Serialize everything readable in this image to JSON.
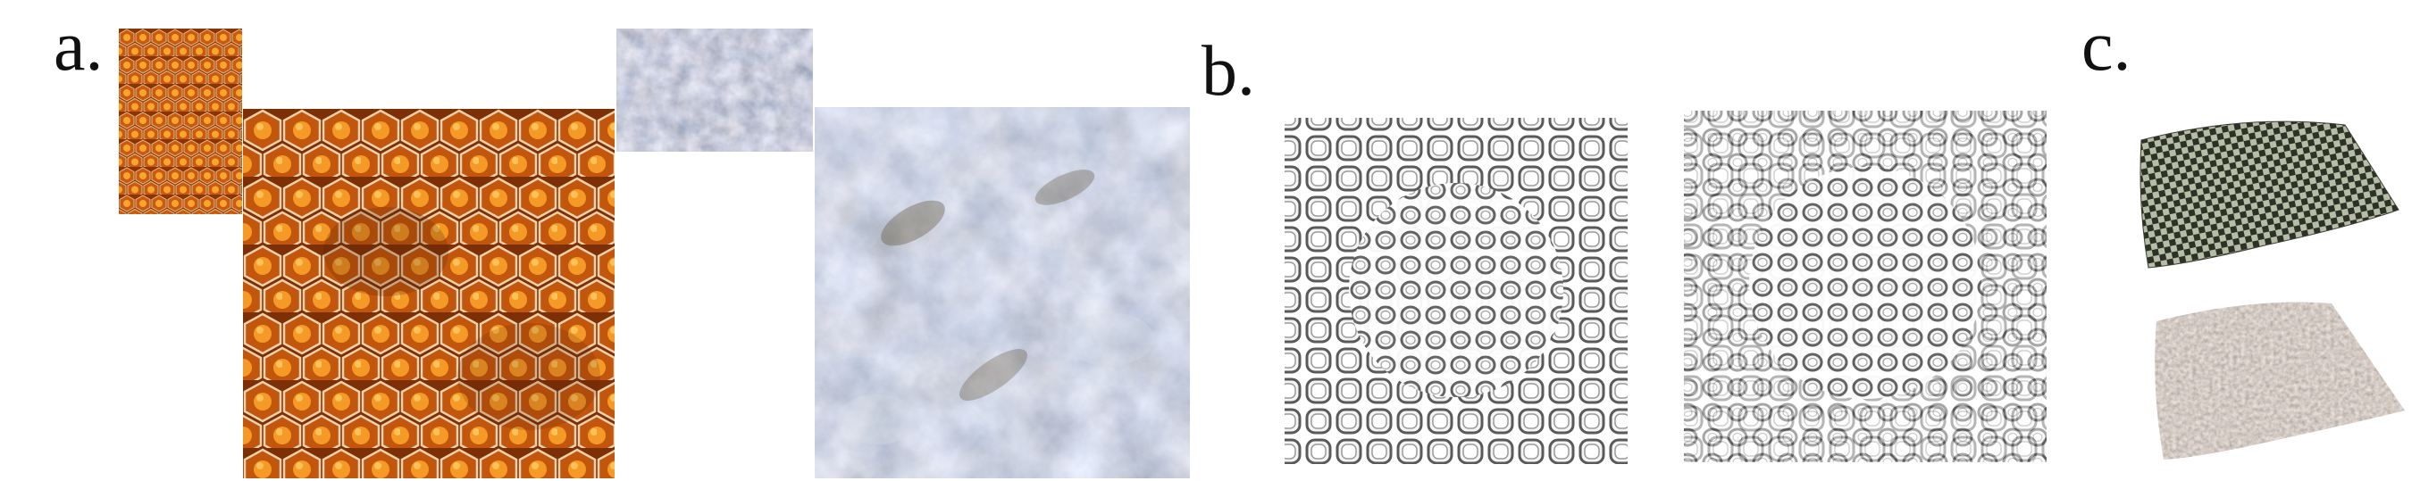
{
  "figure": {
    "panels": [
      {
        "label": "a.",
        "contents": [
          "honeycomb-exemplar",
          "honeycomb-synthesis",
          "rock-exemplar",
          "rock-synthesis"
        ]
      },
      {
        "label": "b.",
        "contents": [
          "3d-lattice-exemplar",
          "3d-lattice-synthesis"
        ]
      },
      {
        "label": "c.",
        "contents": [
          "curved-surface-checker",
          "curved-surface-pebble"
        ]
      }
    ]
  },
  "colors": {
    "honey_dark": "#7a2e04",
    "honey_mid": "#c4580d",
    "honey_light": "#f29a2a",
    "honey_cell_wall": "#e9c9a0",
    "rock_base": "#8a94a6",
    "rock_light": "#c9cfd8",
    "rock_dark": "#4c5160",
    "lattice_fill": "#ffffff",
    "lattice_stroke": "#6a6a6a",
    "surface_checker_dark": "#2c3326",
    "surface_checker_light": "#b7bca6",
    "surface_pebble": "#8f8073"
  }
}
